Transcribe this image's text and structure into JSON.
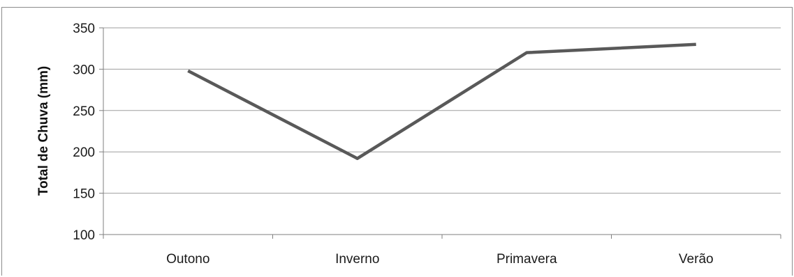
{
  "chart_data": {
    "type": "line",
    "categories": [
      "Outono",
      "Inverno",
      "Primavera",
      "Verão"
    ],
    "series": [
      {
        "values": [
          298,
          192,
          320,
          330
        ]
      }
    ],
    "title": "",
    "xlabel": "",
    "ylabel": "Total de Chuva (mm)",
    "ylim": [
      100,
      350
    ],
    "yticks": [
      100,
      150,
      200,
      250,
      300,
      350
    ],
    "grid": true,
    "legend": "none",
    "colors": {
      "line": "#595959",
      "grid": "#9e9e9e",
      "axis": "#7f7f7f"
    }
  }
}
